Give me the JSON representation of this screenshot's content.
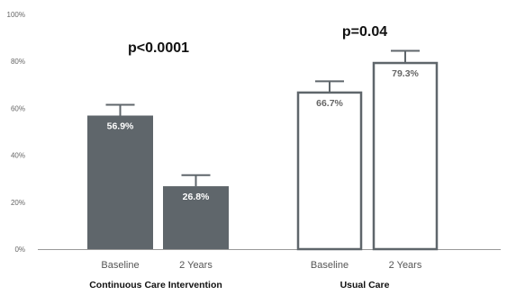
{
  "chart_data": {
    "type": "bar",
    "ylim": [
      0,
      100
    ],
    "yticks": [
      "0%",
      "20%",
      "40%",
      "60%",
      "80%",
      "100%"
    ],
    "groups": [
      {
        "label": "Continuous Care Intervention",
        "pvalue": "p<0.0001",
        "fill": "#5f666b",
        "bars": [
          {
            "category": "Baseline",
            "value": 56.9,
            "label": "56.9%",
            "error_top": 61.5
          },
          {
            "category": "2 Years",
            "value": 26.8,
            "label": "26.8%",
            "error_top": 31.5
          }
        ]
      },
      {
        "label": "Usual Care",
        "pvalue": "p=0.04",
        "fill": "#ffffff",
        "bars": [
          {
            "category": "Baseline",
            "value": 66.7,
            "label": "66.7%",
            "error_top": 71.5
          },
          {
            "category": "2 Years",
            "value": 79.3,
            "label": "79.3%",
            "error_top": 84.5
          }
        ]
      }
    ],
    "grid": false,
    "legend": "none"
  },
  "colors": {
    "filled_bar": "#5f666b",
    "outline_bar": "#5f666b",
    "filled_label": "#ffffff",
    "outline_label": "#666666",
    "axis": "#999999"
  }
}
